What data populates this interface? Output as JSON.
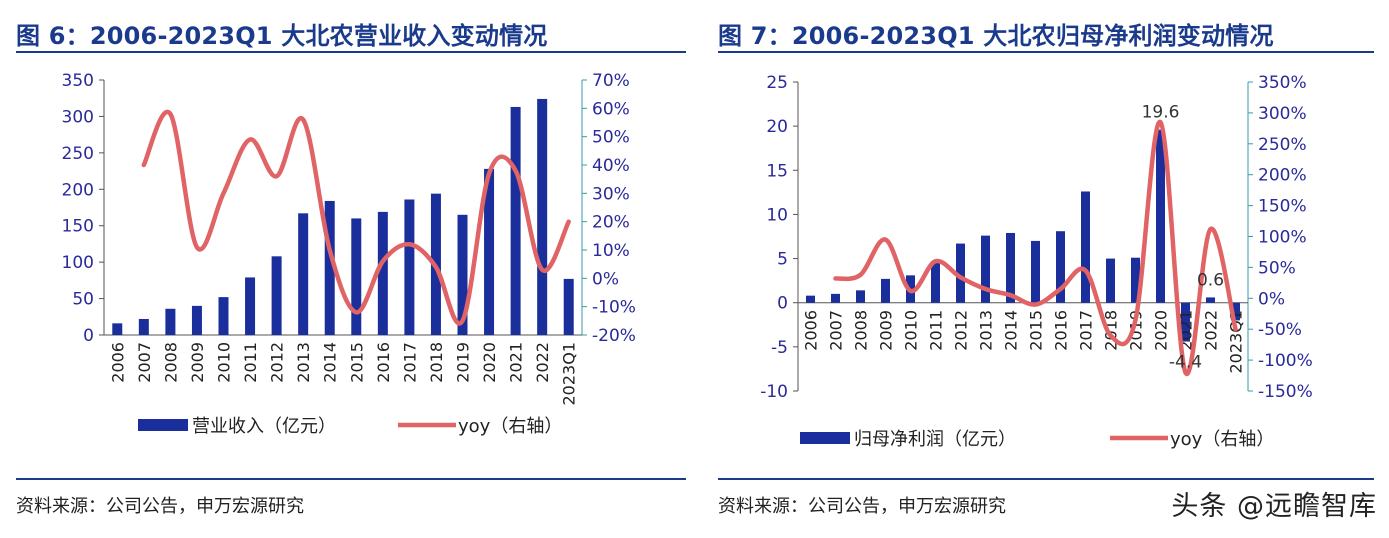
{
  "figures": [
    {
      "title": "图 6：2006-2023Q1 大北农营业收入变动情况",
      "source": "资料来源：公司公告，申万宏源研究"
    },
    {
      "title": "图 7：2006-2023Q1 大北农归母净利润变动情况",
      "source": "资料来源：公司公告，申万宏源研究"
    }
  ],
  "watermark": "头条 @远瞻智库",
  "colors": {
    "bar": "#1a2f9c",
    "line": "#e06366",
    "title": "#1a3a8c",
    "axis_text": "#2a2a9a"
  },
  "chart_data": [
    {
      "type": "bar",
      "title": "图 6：2006-2023Q1 大北农营业收入变动情况",
      "categories": [
        "2006",
        "2007",
        "2008",
        "2009",
        "2010",
        "2011",
        "2012",
        "2013",
        "2014",
        "2015",
        "2016",
        "2017",
        "2018",
        "2019",
        "2020",
        "2021",
        "2022",
        "2023Q1"
      ],
      "series": [
        {
          "name": "营业收入（亿元）",
          "type": "bar",
          "axis": "left",
          "values": [
            16,
            22,
            36,
            40,
            52,
            79,
            108,
            167,
            184,
            160,
            169,
            186,
            194,
            165,
            228,
            313,
            324,
            77
          ]
        },
        {
          "name": "yoy（右轴）",
          "type": "line",
          "axis": "right",
          "values": [
            null,
            40,
            58,
            11,
            30,
            49,
            36,
            56,
            10,
            -12,
            6,
            12,
            4,
            -15,
            37,
            38,
            3,
            20
          ]
        }
      ],
      "y_left": {
        "min": 0,
        "max": 350,
        "step": 50,
        "ticks": [
          "0",
          "50",
          "100",
          "150",
          "200",
          "250",
          "300",
          "350"
        ]
      },
      "y_right": {
        "min": -20,
        "max": 70,
        "step": 10,
        "ticks": [
          "-20%",
          "-10%",
          "0%",
          "10%",
          "20%",
          "30%",
          "40%",
          "50%",
          "60%",
          "70%"
        ]
      },
      "legend": [
        "营业收入（亿元）",
        "yoy（右轴）"
      ],
      "legend_position": "bottom",
      "grid": false,
      "annotations": []
    },
    {
      "type": "bar",
      "title": "图 7：2006-2023Q1 大北农归母净利润变动情况",
      "categories": [
        "2006",
        "2007",
        "2008",
        "2009",
        "2010",
        "2011",
        "2012",
        "2013",
        "2014",
        "2015",
        "2016",
        "2017",
        "2018",
        "2019",
        "2020",
        "2021",
        "2022",
        "2023Q1"
      ],
      "series": [
        {
          "name": "归母净利润（亿元）",
          "type": "bar",
          "axis": "left",
          "values": [
            0.8,
            1.0,
            1.4,
            2.7,
            3.1,
            4.7,
            6.7,
            7.6,
            7.9,
            7.0,
            8.1,
            12.6,
            5.0,
            5.1,
            19.6,
            -4.4,
            0.6,
            -2.0
          ]
        },
        {
          "name": "yoy（右轴）",
          "type": "line",
          "axis": "right",
          "values": [
            null,
            32,
            38,
            95,
            12,
            60,
            34,
            15,
            5,
            -10,
            15,
            45,
            -60,
            -35,
            285,
            -120,
            112,
            -50
          ]
        }
      ],
      "y_left": {
        "min": -10,
        "max": 25,
        "step": 5,
        "ticks": [
          "-10",
          "-5",
          "0",
          "5",
          "10",
          "15",
          "20",
          "25"
        ]
      },
      "y_right": {
        "min": -150,
        "max": 350,
        "step": 50,
        "ticks": [
          "-150%",
          "-100%",
          "-50%",
          "0%",
          "50%",
          "100%",
          "150%",
          "200%",
          "250%",
          "300%",
          "350%"
        ]
      },
      "legend": [
        "归母净利润（亿元）",
        "yoy（右轴）"
      ],
      "legend_position": "bottom",
      "grid": false,
      "annotations": [
        {
          "category": "2020",
          "text": "19.6"
        },
        {
          "category": "2021",
          "text": "-4.4"
        },
        {
          "category": "2022",
          "text": "0.6"
        }
      ]
    }
  ]
}
